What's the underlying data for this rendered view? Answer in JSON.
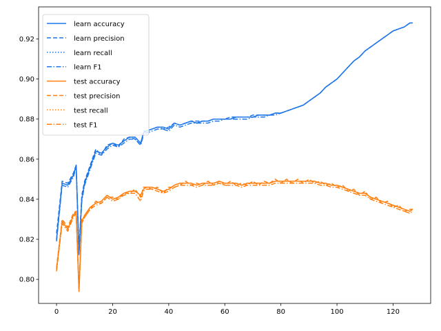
{
  "chart_data": {
    "type": "line",
    "title": "",
    "xlabel": "",
    "ylabel": "",
    "xlim": [
      -6.4,
      133.4
    ],
    "ylim": [
      0.788,
      0.936
    ],
    "xticks": [
      0,
      20,
      40,
      60,
      80,
      100,
      120
    ],
    "yticks": [
      0.8,
      0.82,
      0.84,
      0.86,
      0.88,
      0.9,
      0.92
    ],
    "grid": false,
    "legend_position": "top-left",
    "colors": {
      "learn": "#1f77e8",
      "test": "#ff7f0e"
    },
    "x": [
      0,
      2,
      4,
      6,
      7,
      8,
      9,
      10,
      12,
      14,
      16,
      18,
      20,
      22,
      24,
      26,
      28,
      30,
      31,
      32,
      34,
      36,
      38,
      40,
      42,
      44,
      46,
      48,
      50,
      52,
      54,
      56,
      58,
      60,
      62,
      64,
      66,
      68,
      70,
      72,
      74,
      76,
      78,
      80,
      82,
      84,
      86,
      88,
      90,
      92,
      94,
      96,
      98,
      100,
      102,
      104,
      106,
      108,
      110,
      112,
      114,
      116,
      118,
      120,
      122,
      124,
      126,
      127
    ],
    "series": [
      {
        "name": "learn accuracy",
        "group": "learn",
        "dash": "solid",
        "values": [
          0.82,
          0.848,
          0.847,
          0.852,
          0.857,
          0.813,
          0.84,
          0.848,
          0.856,
          0.864,
          0.863,
          0.866,
          0.868,
          0.867,
          0.869,
          0.871,
          0.871,
          0.868,
          0.873,
          0.874,
          0.875,
          0.876,
          0.876,
          0.875,
          0.878,
          0.877,
          0.878,
          0.879,
          0.878,
          0.879,
          0.879,
          0.88,
          0.88,
          0.88,
          0.88,
          0.881,
          0.881,
          0.881,
          0.881,
          0.882,
          0.882,
          0.882,
          0.883,
          0.883,
          0.884,
          0.885,
          0.886,
          0.887,
          0.889,
          0.891,
          0.893,
          0.896,
          0.898,
          0.9,
          0.903,
          0.906,
          0.909,
          0.911,
          0.914,
          0.916,
          0.918,
          0.92,
          0.922,
          0.924,
          0.925,
          0.926,
          0.928,
          0.928
        ]
      },
      {
        "name": "learn precision",
        "group": "learn",
        "dash": "dashed",
        "values": [
          0.823,
          0.849,
          0.848,
          0.853,
          0.857,
          0.815,
          0.842,
          0.849,
          0.857,
          0.865,
          0.862,
          0.867,
          0.868,
          0.866,
          0.87,
          0.871,
          0.87,
          0.867,
          0.874,
          0.874,
          0.875,
          0.876,
          0.875,
          0.876,
          0.878,
          0.877,
          0.878,
          0.879,
          0.879,
          0.879,
          0.879,
          0.88,
          0.88,
          0.88,
          0.881,
          0.881,
          0.881,
          0.881,
          0.882,
          0.882,
          0.882,
          0.882,
          0.883,
          0.883,
          0.884,
          0.885,
          0.886,
          0.887,
          0.889,
          0.891,
          0.893,
          0.896,
          0.898,
          0.9,
          0.903,
          0.906,
          0.909,
          0.911,
          0.914,
          0.916,
          0.918,
          0.92,
          0.922,
          0.924,
          0.925,
          0.926,
          0.928,
          0.928
        ]
      },
      {
        "name": "learn recall",
        "group": "learn",
        "dash": "dotted",
        "values": [
          0.82,
          0.848,
          0.847,
          0.852,
          0.857,
          0.813,
          0.84,
          0.848,
          0.856,
          0.864,
          0.863,
          0.866,
          0.868,
          0.867,
          0.869,
          0.871,
          0.871,
          0.868,
          0.873,
          0.874,
          0.875,
          0.876,
          0.876,
          0.875,
          0.878,
          0.877,
          0.878,
          0.879,
          0.878,
          0.879,
          0.879,
          0.88,
          0.88,
          0.88,
          0.88,
          0.881,
          0.881,
          0.881,
          0.881,
          0.882,
          0.882,
          0.882,
          0.883,
          0.883,
          0.884,
          0.885,
          0.886,
          0.887,
          0.889,
          0.891,
          0.893,
          0.896,
          0.898,
          0.9,
          0.903,
          0.906,
          0.909,
          0.911,
          0.914,
          0.916,
          0.918,
          0.92,
          0.922,
          0.924,
          0.925,
          0.926,
          0.928,
          0.928
        ]
      },
      {
        "name": "learn F1",
        "group": "learn",
        "dash": "dashdot",
        "values": [
          0.819,
          0.847,
          0.846,
          0.851,
          0.856,
          0.812,
          0.839,
          0.847,
          0.855,
          0.863,
          0.862,
          0.865,
          0.867,
          0.866,
          0.868,
          0.87,
          0.87,
          0.867,
          0.872,
          0.873,
          0.874,
          0.875,
          0.875,
          0.874,
          0.877,
          0.876,
          0.877,
          0.878,
          0.878,
          0.878,
          0.878,
          0.879,
          0.879,
          0.88,
          0.88,
          0.88,
          0.88,
          0.88,
          0.881,
          0.881,
          0.881,
          0.882,
          0.882,
          0.883,
          0.884,
          0.885,
          0.886,
          0.887,
          0.889,
          0.891,
          0.893,
          0.896,
          0.898,
          0.9,
          0.903,
          0.906,
          0.909,
          0.911,
          0.914,
          0.916,
          0.918,
          0.92,
          0.922,
          0.924,
          0.925,
          0.926,
          0.928,
          0.928
        ]
      },
      {
        "name": "test accuracy",
        "group": "test",
        "dash": "solid",
        "values": [
          0.805,
          0.829,
          0.825,
          0.832,
          0.834,
          0.794,
          0.829,
          0.832,
          0.836,
          0.838,
          0.839,
          0.842,
          0.84,
          0.841,
          0.843,
          0.844,
          0.844,
          0.842,
          0.845,
          0.846,
          0.846,
          0.845,
          0.844,
          0.845,
          0.847,
          0.848,
          0.848,
          0.848,
          0.847,
          0.848,
          0.848,
          0.848,
          0.849,
          0.848,
          0.848,
          0.848,
          0.847,
          0.848,
          0.848,
          0.848,
          0.848,
          0.848,
          0.849,
          0.849,
          0.849,
          0.849,
          0.849,
          0.849,
          0.849,
          0.849,
          0.848,
          0.848,
          0.847,
          0.847,
          0.846,
          0.845,
          0.844,
          0.843,
          0.843,
          0.841,
          0.84,
          0.839,
          0.838,
          0.837,
          0.836,
          0.835,
          0.834,
          0.835
        ]
      },
      {
        "name": "test precision",
        "group": "test",
        "dash": "dashed",
        "values": [
          0.806,
          0.83,
          0.826,
          0.833,
          0.834,
          0.796,
          0.83,
          0.831,
          0.835,
          0.839,
          0.838,
          0.841,
          0.841,
          0.84,
          0.843,
          0.843,
          0.845,
          0.841,
          0.846,
          0.846,
          0.845,
          0.846,
          0.843,
          0.846,
          0.846,
          0.847,
          0.849,
          0.847,
          0.848,
          0.847,
          0.849,
          0.847,
          0.849,
          0.847,
          0.849,
          0.847,
          0.848,
          0.847,
          0.849,
          0.847,
          0.849,
          0.848,
          0.85,
          0.848,
          0.85,
          0.848,
          0.85,
          0.848,
          0.85,
          0.848,
          0.849,
          0.847,
          0.848,
          0.846,
          0.847,
          0.844,
          0.845,
          0.842,
          0.844,
          0.84,
          0.841,
          0.838,
          0.839,
          0.836,
          0.837,
          0.834,
          0.835,
          0.835
        ]
      },
      {
        "name": "test recall",
        "group": "test",
        "dash": "dotted",
        "values": [
          0.805,
          0.829,
          0.825,
          0.832,
          0.834,
          0.794,
          0.829,
          0.832,
          0.836,
          0.838,
          0.839,
          0.842,
          0.84,
          0.841,
          0.843,
          0.844,
          0.844,
          0.842,
          0.845,
          0.846,
          0.846,
          0.845,
          0.844,
          0.845,
          0.847,
          0.848,
          0.848,
          0.848,
          0.847,
          0.848,
          0.848,
          0.848,
          0.849,
          0.848,
          0.848,
          0.848,
          0.847,
          0.848,
          0.848,
          0.848,
          0.848,
          0.848,
          0.849,
          0.849,
          0.849,
          0.849,
          0.849,
          0.849,
          0.849,
          0.849,
          0.848,
          0.848,
          0.847,
          0.847,
          0.846,
          0.845,
          0.844,
          0.843,
          0.843,
          0.841,
          0.84,
          0.839,
          0.838,
          0.837,
          0.836,
          0.835,
          0.834,
          0.835
        ]
      },
      {
        "name": "test F1",
        "group": "test",
        "dash": "dashdot",
        "values": [
          0.804,
          0.828,
          0.824,
          0.831,
          0.833,
          0.794,
          0.828,
          0.831,
          0.835,
          0.837,
          0.838,
          0.841,
          0.839,
          0.84,
          0.842,
          0.843,
          0.843,
          0.839,
          0.844,
          0.845,
          0.845,
          0.844,
          0.843,
          0.844,
          0.846,
          0.847,
          0.847,
          0.847,
          0.846,
          0.847,
          0.847,
          0.847,
          0.848,
          0.847,
          0.847,
          0.847,
          0.846,
          0.847,
          0.847,
          0.847,
          0.847,
          0.847,
          0.848,
          0.848,
          0.848,
          0.848,
          0.848,
          0.848,
          0.848,
          0.848,
          0.847,
          0.847,
          0.846,
          0.846,
          0.845,
          0.844,
          0.843,
          0.842,
          0.842,
          0.84,
          0.839,
          0.838,
          0.837,
          0.836,
          0.835,
          0.834,
          0.833,
          0.834
        ]
      }
    ]
  }
}
